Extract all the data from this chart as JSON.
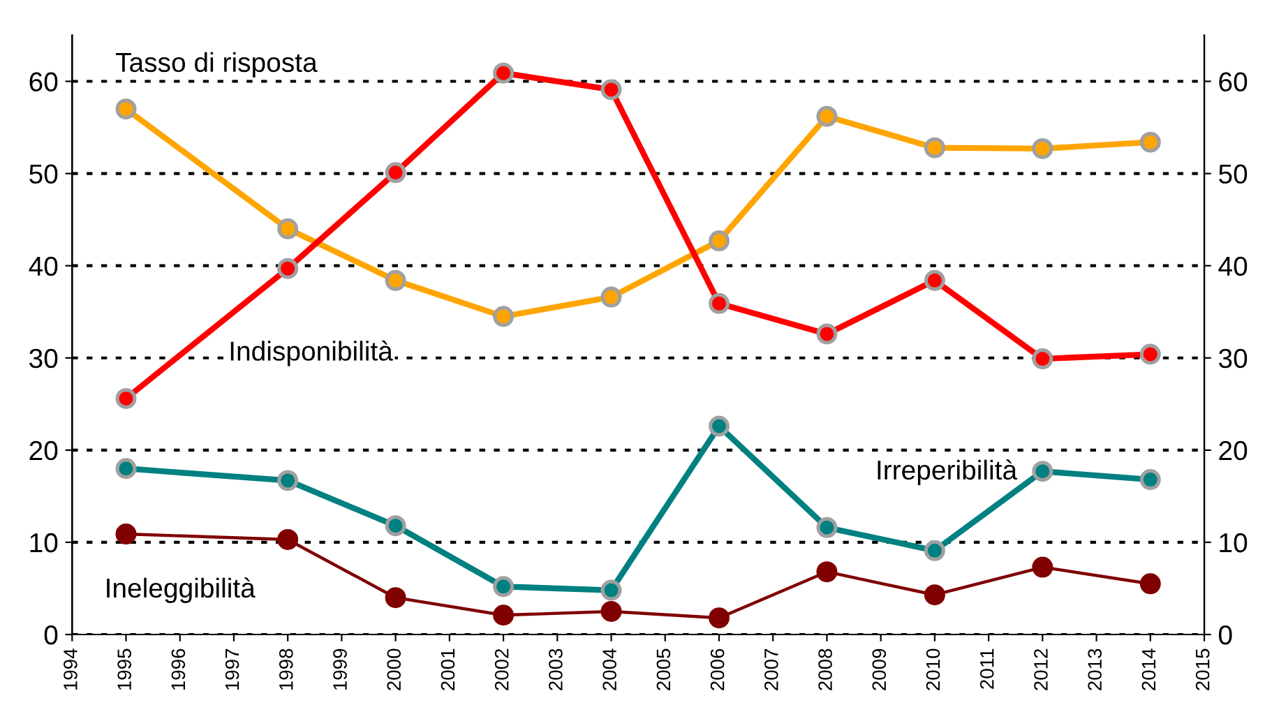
{
  "chart_data": {
    "type": "line",
    "x": [
      1995,
      1998,
      2000,
      2002,
      2004,
      2006,
      2008,
      2010,
      2012,
      2014
    ],
    "series": [
      {
        "name": "Tasso di risposta",
        "color": "#ffa500",
        "values": [
          57.0,
          44.0,
          38.4,
          34.5,
          36.6,
          42.7,
          56.2,
          52.8,
          52.7,
          53.4
        ]
      },
      {
        "name": "Indisponibilità",
        "color": "#ff0000",
        "values": [
          25.6,
          39.7,
          50.1,
          60.9,
          59.1,
          35.9,
          32.6,
          38.4,
          29.9,
          30.4
        ]
      },
      {
        "name": "Irreperibilità",
        "color": "#008080",
        "values": [
          18.0,
          16.7,
          11.8,
          5.2,
          4.8,
          22.6,
          11.6,
          9.1,
          17.7,
          16.8
        ]
      },
      {
        "name": "Ineleggibilità",
        "color": "#800000",
        "values": [
          10.9,
          10.3,
          4.0,
          2.1,
          2.5,
          1.8,
          6.8,
          4.3,
          7.3,
          5.5
        ]
      }
    ],
    "xlim": [
      1994,
      2015
    ],
    "xticks": [
      1994,
      1995,
      1996,
      1997,
      1998,
      1999,
      2000,
      2001,
      2002,
      2003,
      2004,
      2005,
      2006,
      2007,
      2008,
      2009,
      2010,
      2011,
      2012,
      2013,
      2014,
      2015
    ],
    "ylim": [
      0,
      65
    ],
    "yticks": [
      0,
      10,
      20,
      30,
      40,
      50,
      60
    ],
    "y2lim": [
      0,
      65
    ],
    "y2ticks": [
      0,
      10,
      20,
      30,
      40,
      50,
      60
    ],
    "grid": "y",
    "marker": "circle",
    "line_style": "solid"
  }
}
